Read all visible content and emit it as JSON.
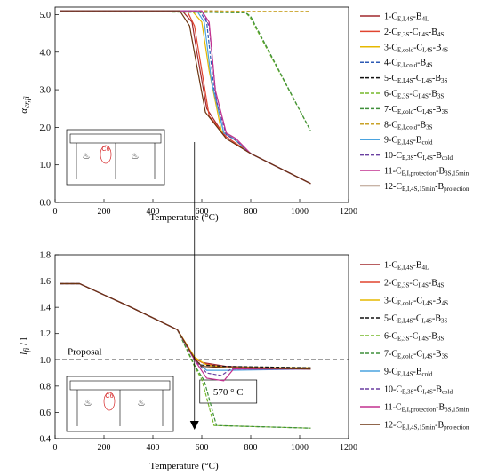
{
  "chart_data": [
    {
      "type": "line",
      "xlabel": "Temperature (°C)",
      "ylabel": "α_cr,fi",
      "ylabel_main": "α",
      "ylabel_sub": "cr,fi",
      "xlim": [
        0,
        1200
      ],
      "ylim": [
        0,
        5.2
      ],
      "xticks": [
        "0",
        "200",
        "400",
        "600",
        "800",
        "1000",
        "1200"
      ],
      "yticks": [
        "0.0",
        "1.0",
        "2.0",
        "3.0",
        "4.0",
        "5.0"
      ],
      "xtick_values": [
        0,
        200,
        400,
        600,
        800,
        1000,
        1200
      ],
      "ytick_values": [
        0,
        1,
        2,
        3,
        4,
        5
      ],
      "inset_label": "C6",
      "series": [
        {
          "name": "1-C E,I,4S -B 4L",
          "label": [
            "1-C",
            "E,I,4S",
            "-B",
            "4L"
          ],
          "color": "#a0282d",
          "dash": "solid",
          "x": [
            20,
            520,
            560,
            580,
            620,
            700,
            800,
            1045
          ],
          "y": [
            5.1,
            5.1,
            4.8,
            4.0,
            2.5,
            1.7,
            1.3,
            0.5
          ]
        },
        {
          "name": "2-C E,3S -C I,4S -B 4S",
          "label": [
            "2-C",
            "E,3S",
            "-C",
            "I,4S",
            "-B",
            "4S"
          ],
          "color": "#e0452f",
          "dash": "solid",
          "x": [
            20,
            540,
            570,
            590,
            630,
            700,
            800,
            1045
          ],
          "y": [
            5.1,
            5.1,
            4.7,
            3.9,
            2.3,
            1.75,
            1.3,
            0.5
          ]
        },
        {
          "name": "3-C E,cold -C I,4S -B 4S",
          "label": [
            "3-C",
            "E,cold",
            "-C",
            "I,4S",
            "-B",
            "4S"
          ],
          "color": "#e6b800",
          "dash": "solid",
          "x": [
            20,
            560,
            600,
            630,
            680,
            720,
            800,
            1045
          ],
          "y": [
            5.1,
            5.1,
            4.8,
            3.5,
            1.9,
            1.75,
            1.3,
            0.5
          ]
        },
        {
          "name": "4-C E,I,cold -B 4S",
          "label": [
            "4-C",
            "E,I,cold",
            "-B",
            "4S"
          ],
          "color": "#2d5ab4",
          "dash": "dashed",
          "x": [
            20,
            590,
            620,
            650,
            690,
            730,
            800,
            1045
          ],
          "y": [
            5.1,
            5.1,
            4.8,
            3.0,
            1.85,
            1.7,
            1.3,
            0.5
          ]
        },
        {
          "name": "5-C E,I,4S -C I,4S -B 3S",
          "label": [
            "5-C",
            "E,I,4S",
            "-C",
            "I,4S",
            "-B",
            "3S"
          ],
          "color": "#111111",
          "dash": "dashed",
          "x": [
            20,
            600,
            800,
            1045
          ],
          "y": [
            5.1,
            5.1,
            5.08,
            5.08
          ]
        },
        {
          "name": "6-C E,3S -C I,4S -B 3S",
          "label": [
            "6-C",
            "E,3S",
            "-C",
            "I,4S",
            "-B",
            "3S"
          ],
          "color": "#76b82a",
          "dash": "dashed",
          "x": [
            20,
            780,
            800,
            1045
          ],
          "y": [
            5.1,
            5.05,
            4.9,
            1.9
          ]
        },
        {
          "name": "7-C E,cold -C I,4S -B 3S",
          "label": [
            "7-C",
            "E,cold",
            "-C",
            "I,4S",
            "-B",
            "3S"
          ],
          "color": "#3f8f3a",
          "dash": "dashed",
          "x": [
            20,
            780,
            800,
            1045
          ],
          "y": [
            5.1,
            5.05,
            4.95,
            1.9
          ]
        },
        {
          "name": "8-C E,I,cold -B 3S",
          "label": [
            "8-C",
            "E,I,cold",
            "-B",
            "3S"
          ],
          "color": "#c9a227",
          "dash": "dashed",
          "x": [
            20,
            600,
            800,
            1045
          ],
          "y": [
            5.1,
            5.1,
            5.09,
            5.09
          ]
        },
        {
          "name": "9-C E,I,4S -B cold",
          "label": [
            "9-C",
            "E,I,4S",
            "-B",
            "cold"
          ],
          "color": "#4aa3df",
          "dash": "solid",
          "x": [
            20,
            580,
            610,
            640,
            690,
            730,
            800,
            1045
          ],
          "y": [
            5.1,
            5.1,
            4.8,
            3.2,
            1.85,
            1.7,
            1.3,
            0.5
          ]
        },
        {
          "name": "10-C E,3S -C I,4S -B cold",
          "label": [
            "10-C",
            "E,3S",
            "-C",
            "I,4S",
            "-B",
            "cold"
          ],
          "color": "#6a3fa0",
          "dash": "dashed",
          "x": [
            20,
            600,
            630,
            660,
            700,
            740,
            800,
            1045
          ],
          "y": [
            5.1,
            5.1,
            4.7,
            2.7,
            1.8,
            1.65,
            1.3,
            0.5
          ]
        },
        {
          "name": "11-C E,I,protection -B 3S,15min",
          "label": [
            "11-C",
            "E,I,protection",
            "-B",
            "3S,15min"
          ],
          "color": "#c2308f",
          "dash": "solid",
          "x": [
            20,
            600,
            630,
            655,
            700,
            740,
            800,
            1045
          ],
          "y": [
            5.1,
            5.1,
            4.8,
            3.0,
            1.85,
            1.7,
            1.3,
            0.5
          ]
        },
        {
          "name": "12-C E,I,4S,15min -B protection",
          "label": [
            "12-C",
            "E,I,4S,15min",
            "-B",
            "protection"
          ],
          "color": "#6b3410",
          "dash": "solid",
          "x": [
            20,
            510,
            550,
            575,
            615,
            700,
            800,
            1045
          ],
          "y": [
            5.1,
            5.1,
            4.7,
            3.8,
            2.4,
            1.7,
            1.3,
            0.5
          ]
        }
      ]
    },
    {
      "type": "line",
      "xlabel": "Temperature (°C)",
      "ylabel": "l_fi / l",
      "ylabel_main": "l",
      "ylabel_sub": "fi",
      "ylabel_tail": " / l",
      "xlim": [
        0,
        1200
      ],
      "ylim": [
        0.4,
        1.8
      ],
      "xticks": [
        "0",
        "200",
        "400",
        "600",
        "800",
        "1000",
        "1200"
      ],
      "yticks": [
        "0.4",
        "0.6",
        "0.8",
        "1.0",
        "1.2",
        "1.4",
        "1.6",
        "1.8"
      ],
      "xtick_values": [
        0,
        200,
        400,
        600,
        800,
        1000,
        1200
      ],
      "ytick_values": [
        0.4,
        0.6,
        0.8,
        1.0,
        1.2,
        1.4,
        1.6,
        1.8
      ],
      "inset_label": "C6",
      "proposal": {
        "label": "Proposal",
        "y": 1.0
      },
      "annotation": {
        "label": "570 ° C",
        "x": 570
      },
      "series": [
        {
          "name": "1-C E,I,4S -B 4L",
          "label": [
            "1-C",
            "E,I,4S",
            "-B",
            "4L"
          ],
          "color": "#a0282d",
          "dash": "solid",
          "x": [
            20,
            100,
            300,
            500,
            570,
            600,
            700,
            1045
          ],
          "y": [
            1.58,
            1.58,
            1.41,
            1.23,
            1.02,
            0.98,
            0.95,
            0.93
          ]
        },
        {
          "name": "2-C E,3S -C I,4S -B 4S",
          "label": [
            "2-C",
            "E,3S",
            "-C",
            "I,4S",
            "-B",
            "4S"
          ],
          "color": "#e0452f",
          "dash": "solid",
          "x": [
            20,
            100,
            300,
            500,
            570,
            610,
            700,
            1045
          ],
          "y": [
            1.58,
            1.58,
            1.41,
            1.23,
            1.01,
            0.97,
            0.94,
            0.93
          ]
        },
        {
          "name": "3-C E,cold -C I,4S -B 4S",
          "label": [
            "3-C",
            "E,cold",
            "-C",
            "I,4S",
            "-B",
            "4S"
          ],
          "color": "#e6b800",
          "dash": "solid",
          "x": [
            20,
            100,
            300,
            500,
            570,
            620,
            700,
            1045
          ],
          "y": [
            1.58,
            1.58,
            1.41,
            1.23,
            1.02,
            0.96,
            0.94,
            0.94
          ]
        },
        {
          "name": "5-C E,I,4S -C I,4S -B 3S",
          "label": [
            "5-C",
            "E,I,4S",
            "-C",
            "I,4S",
            "-B",
            "3S"
          ],
          "color": "#111111",
          "dash": "dashed",
          "x": [
            20,
            100,
            300,
            500,
            570,
            600,
            700,
            1045
          ],
          "y": [
            1.58,
            1.58,
            1.41,
            1.23,
            1.0,
            0.96,
            0.95,
            0.94
          ]
        },
        {
          "name": "6-C E,3S -C I,4S -B 3S",
          "label": [
            "6-C",
            "E,3S",
            "-C",
            "I,4S",
            "-B",
            "3S"
          ],
          "color": "#76b82a",
          "dash": "dashed",
          "x": [
            20,
            100,
            300,
            500,
            570,
            600,
            650,
            1045
          ],
          "y": [
            1.58,
            1.58,
            1.41,
            1.23,
            0.95,
            0.85,
            0.5,
            0.48
          ]
        },
        {
          "name": "7-C E,cold -C I,4S -B 3S",
          "label": [
            "7-C",
            "E,cold",
            "-C",
            "I,4S",
            "-B",
            "3S"
          ],
          "color": "#3f8f3a",
          "dash": "dashed",
          "x": [
            20,
            100,
            300,
            500,
            570,
            610,
            660,
            1045
          ],
          "y": [
            1.58,
            1.58,
            1.41,
            1.23,
            0.96,
            0.84,
            0.5,
            0.48
          ]
        },
        {
          "name": "9-C E,I,4S -B cold",
          "label": [
            "9-C",
            "E,I,4S",
            "-B",
            "cold"
          ],
          "color": "#4aa3df",
          "dash": "solid",
          "x": [
            20,
            100,
            300,
            500,
            570,
            620,
            700,
            1045
          ],
          "y": [
            1.58,
            1.58,
            1.41,
            1.23,
            1.0,
            0.92,
            0.92,
            0.93
          ]
        },
        {
          "name": "10-C E,3S -C I,4S -B cold",
          "label": [
            "10-C",
            "E,3S",
            "-C",
            "I,4S",
            "-B",
            "cold"
          ],
          "color": "#6a3fa0",
          "dash": "dashed",
          "x": [
            20,
            100,
            300,
            500,
            570,
            620,
            680,
            720,
            1045
          ],
          "y": [
            1.58,
            1.58,
            1.41,
            1.23,
            1.0,
            0.9,
            0.88,
            0.93,
            0.93
          ]
        },
        {
          "name": "11-C E,I,protection -B 3S,15min",
          "label": [
            "11-C",
            "E,I,protection",
            "-B",
            "3S,15min"
          ],
          "color": "#c2308f",
          "dash": "solid",
          "x": [
            20,
            100,
            300,
            500,
            570,
            620,
            690,
            730,
            1045
          ],
          "y": [
            1.58,
            1.58,
            1.41,
            1.23,
            1.0,
            0.86,
            0.84,
            0.93,
            0.93
          ]
        },
        {
          "name": "12-C E,I,4S,15min -B protection",
          "label": [
            "12-C",
            "E,I,4S,15min",
            "-B",
            "protection"
          ],
          "color": "#6b3410",
          "dash": "solid",
          "x": [
            20,
            100,
            300,
            500,
            570,
            600,
            700,
            1045
          ],
          "y": [
            1.58,
            1.58,
            1.41,
            1.23,
            1.01,
            0.95,
            0.94,
            0.93
          ]
        }
      ]
    }
  ]
}
